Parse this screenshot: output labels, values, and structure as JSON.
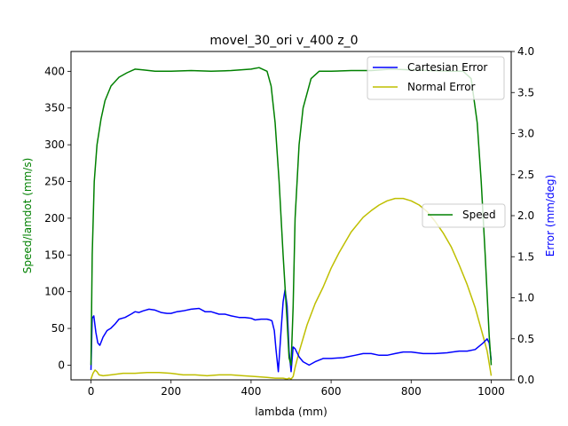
{
  "chart_data": {
    "type": "line",
    "title": "movel_30_ori v_400 z_0",
    "xlabel": "lambda (mm)",
    "ylabel_left": "Speed/lamdot (mm/s)",
    "ylabel_right": "Error (mm/deg)",
    "xlim": [
      -50,
      1050
    ],
    "ylim_left": [
      -20,
      427
    ],
    "ylim_right": [
      0.0,
      4.0
    ],
    "xticks": [
      0,
      200,
      400,
      600,
      800,
      1000
    ],
    "yticks_left": [
      0,
      50,
      100,
      150,
      200,
      250,
      300,
      350,
      400
    ],
    "yticks_right": [
      "0.0",
      "0.5",
      "1.0",
      "1.5",
      "2.0",
      "2.5",
      "3.0",
      "3.5",
      "4.0"
    ],
    "grid": false,
    "legend_errors": {
      "placement": "top-right",
      "entries": [
        "Cartesian Error",
        "Normal Error"
      ]
    },
    "legend_speed": {
      "placement": "center-right",
      "entries": [
        "Speed"
      ]
    },
    "colors": {
      "speed": "#008000",
      "cartesian": "#0000ff",
      "normal": "#bfbf00",
      "right_axis_label": "#0000ff",
      "left_axis_label": "#008000"
    },
    "series": [
      {
        "name": "Speed",
        "axis": "left",
        "x": [
          0,
          3,
          8,
          15,
          25,
          35,
          50,
          70,
          90,
          110,
          130,
          160,
          200,
          250,
          300,
          350,
          400,
          420,
          440,
          450,
          460,
          470,
          480,
          490,
          495,
          500,
          505,
          510,
          520,
          530,
          550,
          570,
          600,
          650,
          700,
          750,
          800,
          850,
          900,
          930,
          950,
          965,
          975,
          985,
          995,
          1000
        ],
        "values": [
          0,
          150,
          250,
          300,
          335,
          360,
          380,
          392,
          398,
          403,
          402,
          400,
          400,
          401,
          400,
          401,
          403,
          405,
          400,
          380,
          330,
          250,
          150,
          60,
          10,
          0,
          80,
          200,
          300,
          350,
          390,
          400,
          400,
          401,
          401,
          403,
          402,
          401,
          400,
          400,
          390,
          330,
          250,
          150,
          40,
          0
        ]
      },
      {
        "name": "Cartesian Error",
        "axis": "right",
        "x": [
          0,
          3,
          7,
          12,
          17,
          22,
          30,
          40,
          50,
          60,
          70,
          85,
          100,
          110,
          120,
          130,
          145,
          160,
          175,
          190,
          200,
          215,
          230,
          250,
          270,
          285,
          300,
          320,
          335,
          350,
          370,
          385,
          400,
          410,
          425,
          440,
          447,
          452,
          458,
          462,
          468,
          475,
          480,
          485,
          490,
          495,
          500,
          505,
          510,
          520,
          530,
          545,
          560,
          580,
          600,
          630,
          660,
          680,
          700,
          720,
          740,
          760,
          780,
          800,
          830,
          860,
          890,
          920,
          940,
          960,
          980,
          990,
          995,
          1000
        ],
        "values": [
          0.12,
          0.75,
          0.78,
          0.58,
          0.45,
          0.42,
          0.52,
          0.6,
          0.63,
          0.68,
          0.74,
          0.76,
          0.8,
          0.83,
          0.82,
          0.84,
          0.86,
          0.85,
          0.82,
          0.81,
          0.81,
          0.83,
          0.84,
          0.86,
          0.87,
          0.83,
          0.83,
          0.8,
          0.8,
          0.78,
          0.76,
          0.76,
          0.75,
          0.73,
          0.74,
          0.74,
          0.73,
          0.72,
          0.6,
          0.38,
          0.1,
          0.6,
          0.95,
          1.1,
          0.9,
          0.35,
          0.1,
          0.4,
          0.38,
          0.28,
          0.22,
          0.18,
          0.22,
          0.26,
          0.26,
          0.27,
          0.3,
          0.32,
          0.32,
          0.3,
          0.3,
          0.32,
          0.34,
          0.34,
          0.32,
          0.32,
          0.33,
          0.35,
          0.35,
          0.37,
          0.45,
          0.5,
          0.45,
          0.24
        ]
      },
      {
        "name": "Normal Error",
        "axis": "right",
        "x": [
          0,
          5,
          10,
          15,
          20,
          30,
          50,
          80,
          110,
          140,
          170,
          200,
          230,
          260,
          290,
          320,
          350,
          380,
          410,
          440,
          460,
          480,
          490,
          495,
          500,
          505,
          510,
          520,
          540,
          560,
          580,
          600,
          620,
          650,
          680,
          700,
          720,
          740,
          760,
          780,
          800,
          820,
          840,
          860,
          880,
          900,
          920,
          940,
          960,
          980,
          990,
          1000
        ],
        "values": [
          0.01,
          0.08,
          0.12,
          0.1,
          0.06,
          0.05,
          0.06,
          0.08,
          0.08,
          0.09,
          0.09,
          0.08,
          0.06,
          0.06,
          0.05,
          0.06,
          0.06,
          0.05,
          0.04,
          0.03,
          0.02,
          0.02,
          0.01,
          0.02,
          0.01,
          0.04,
          0.15,
          0.34,
          0.67,
          0.93,
          1.13,
          1.36,
          1.55,
          1.8,
          1.98,
          2.06,
          2.13,
          2.18,
          2.21,
          2.21,
          2.18,
          2.13,
          2.05,
          1.93,
          1.79,
          1.62,
          1.4,
          1.16,
          0.88,
          0.53,
          0.35,
          0.05
        ]
      }
    ]
  }
}
